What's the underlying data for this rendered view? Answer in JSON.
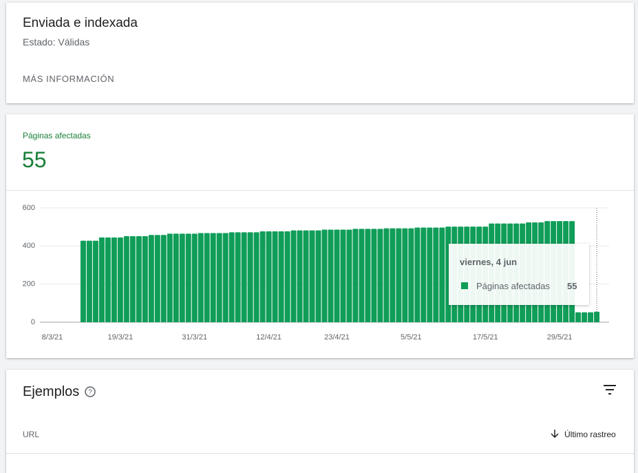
{
  "header": {
    "title": "Enviada e indexada",
    "status": "Estado: Válidas",
    "more": "MÁS INFORMACIÓN"
  },
  "summary": {
    "label": "Páginas afectadas",
    "value": "55"
  },
  "chart_data": {
    "type": "bar",
    "x": [
      "2021-03-13",
      "2021-03-14",
      "2021-03-15",
      "2021-03-16",
      "2021-03-17",
      "2021-03-18",
      "2021-03-19",
      "2021-03-20",
      "2021-03-21",
      "2021-03-22",
      "2021-03-23",
      "2021-03-24",
      "2021-03-25",
      "2021-03-26",
      "2021-03-27",
      "2021-03-28",
      "2021-03-29",
      "2021-03-30",
      "2021-03-31",
      "2021-04-01",
      "2021-04-02",
      "2021-04-03",
      "2021-04-04",
      "2021-04-05",
      "2021-04-06",
      "2021-04-07",
      "2021-04-08",
      "2021-04-09",
      "2021-04-10",
      "2021-04-11",
      "2021-04-12",
      "2021-04-13",
      "2021-04-14",
      "2021-04-15",
      "2021-04-16",
      "2021-04-17",
      "2021-04-18",
      "2021-04-19",
      "2021-04-20",
      "2021-04-21",
      "2021-04-22",
      "2021-04-23",
      "2021-04-24",
      "2021-04-25",
      "2021-04-26",
      "2021-04-27",
      "2021-04-28",
      "2021-04-29",
      "2021-04-30",
      "2021-05-01",
      "2021-05-02",
      "2021-05-03",
      "2021-05-04",
      "2021-05-05",
      "2021-05-06",
      "2021-05-07",
      "2021-05-08",
      "2021-05-09",
      "2021-05-10",
      "2021-05-11",
      "2021-05-12",
      "2021-05-13",
      "2021-05-14",
      "2021-05-15",
      "2021-05-16",
      "2021-05-17",
      "2021-05-18",
      "2021-05-19",
      "2021-05-20",
      "2021-05-21",
      "2021-05-22",
      "2021-05-23",
      "2021-05-24",
      "2021-05-25",
      "2021-05-26",
      "2021-05-27",
      "2021-05-28",
      "2021-05-29",
      "2021-05-30",
      "2021-05-31",
      "2021-06-01",
      "2021-06-02",
      "2021-06-03",
      "2021-06-04"
    ],
    "series": [
      {
        "name": "Páginas afectadas",
        "color": "#0f9d58",
        "values": [
          428,
          428,
          428,
          445,
          445,
          445,
          445,
          452,
          452,
          452,
          452,
          458,
          458,
          458,
          465,
          465,
          465,
          465,
          465,
          468,
          468,
          468,
          468,
          468,
          472,
          472,
          472,
          472,
          472,
          477,
          477,
          477,
          477,
          477,
          482,
          482,
          482,
          482,
          482,
          486,
          486,
          486,
          486,
          486,
          490,
          490,
          490,
          490,
          490,
          493,
          493,
          493,
          493,
          493,
          497,
          497,
          497,
          497,
          497,
          502,
          502,
          502,
          502,
          502,
          502,
          502,
          518,
          518,
          518,
          518,
          518,
          518,
          524,
          524,
          524,
          531,
          531,
          531,
          531,
          531,
          52,
          52,
          52,
          55
        ]
      }
    ],
    "xlim": [
      "2021-03-06",
      "2021-06-06"
    ],
    "xticks": [
      {
        "value": "2021-03-08",
        "label": "8/3/21"
      },
      {
        "value": "2021-03-19",
        "label": "19/3/21"
      },
      {
        "value": "2021-03-31",
        "label": "31/3/21"
      },
      {
        "value": "2021-04-12",
        "label": "12/4/21"
      },
      {
        "value": "2021-04-23",
        "label": "23/4/21"
      },
      {
        "value": "2021-05-05",
        "label": "5/5/21"
      },
      {
        "value": "2021-05-17",
        "label": "17/5/21"
      },
      {
        "value": "2021-05-29",
        "label": "29/5/21"
      }
    ],
    "ylim": [
      0,
      600
    ],
    "yticks": [
      0,
      200,
      400,
      600
    ],
    "grid": true,
    "tooltip": {
      "date": "viernes, 4 jun",
      "series": "Páginas afectadas",
      "value": "55"
    }
  },
  "examples": {
    "title": "Ejemplos",
    "columns": [
      "URL",
      "Último rastreo"
    ]
  }
}
